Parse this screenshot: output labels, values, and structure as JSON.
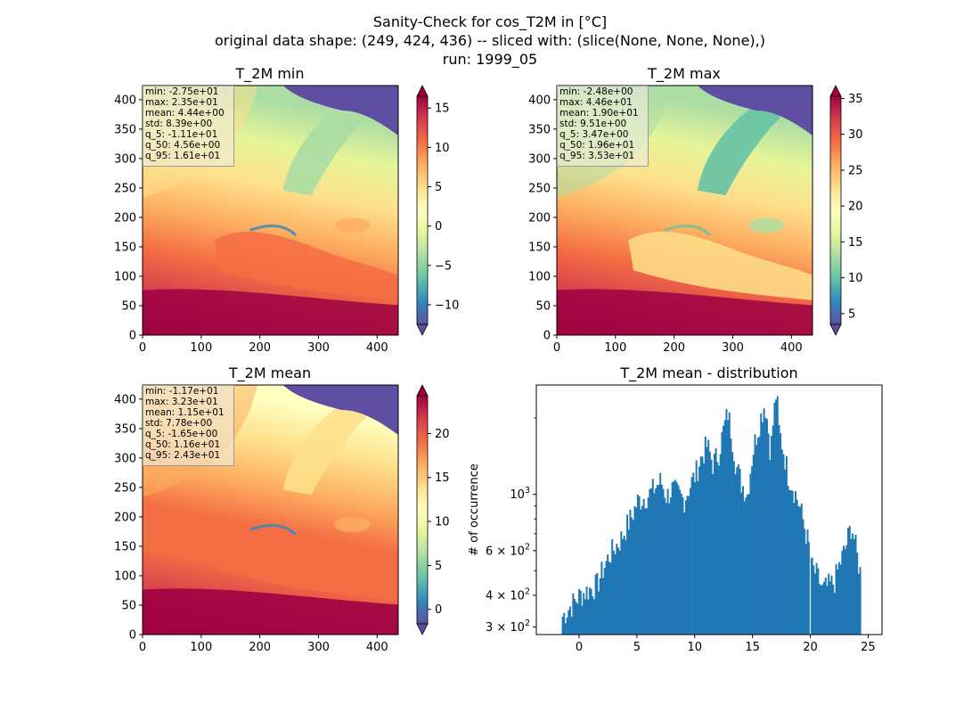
{
  "figure": {
    "title_lines": [
      "Sanity-Check for cos_T2M in [°C]",
      "original data shape: (249, 424, 436) -- sliced with: (slice(None, None, None),)",
      "run: 1999_05"
    ]
  },
  "colormap": {
    "name": "Spectral_r",
    "stops": [
      "#5e4fa2",
      "#3288bd",
      "#66c2a5",
      "#abdda4",
      "#e6f598",
      "#ffffbf",
      "#fee08b",
      "#fdae61",
      "#f46d43",
      "#d53e4f",
      "#9e0142"
    ]
  },
  "chart_data": [
    {
      "type": "heatmap",
      "title": "T_2M min",
      "xlim": [
        0,
        436
      ],
      "ylim": [
        0,
        424
      ],
      "xticks": [
        "0",
        "100",
        "200",
        "300",
        "400"
      ],
      "yticks": [
        "0",
        "50",
        "100",
        "150",
        "200",
        "250",
        "300",
        "350",
        "400"
      ],
      "stats": [
        "min: -2.75e+01",
        "max: 2.35e+01",
        "mean: 4.44e+00",
        "std: 8.39e+00",
        "q_5: -1.11e+01",
        "q_50: 4.56e+00",
        "q_95: 1.61e+01"
      ],
      "colorbar": {
        "range": [
          -12.5,
          16.5
        ],
        "ticks": [
          "−10",
          "−5",
          "0",
          "5",
          "10",
          "15"
        ],
        "tick_values": [
          -10,
          -5,
          0,
          5,
          10,
          15
        ]
      }
    },
    {
      "type": "heatmap",
      "title": "T_2M max",
      "xlim": [
        0,
        436
      ],
      "ylim": [
        0,
        424
      ],
      "xticks": [
        "0",
        "100",
        "200",
        "300",
        "400"
      ],
      "yticks": [
        "0",
        "50",
        "100",
        "150",
        "200",
        "250",
        "300",
        "350",
        "400"
      ],
      "stats": [
        "min: -2.48e+00",
        "max: 4.46e+01",
        "mean: 1.90e+01",
        "std: 9.51e+00",
        "q_5: 3.47e+00",
        "q_50: 1.96e+01",
        "q_95: 3.53e+01"
      ],
      "colorbar": {
        "range": [
          3.5,
          35.3
        ],
        "ticks": [
          "5",
          "10",
          "15",
          "20",
          "25",
          "30",
          "35"
        ],
        "tick_values": [
          5,
          10,
          15,
          20,
          25,
          30,
          35
        ]
      }
    },
    {
      "type": "heatmap",
      "title": "T_2M mean",
      "xlim": [
        0,
        436
      ],
      "ylim": [
        0,
        424
      ],
      "xticks": [
        "0",
        "100",
        "200",
        "300",
        "400"
      ],
      "yticks": [
        "0",
        "50",
        "100",
        "150",
        "200",
        "250",
        "300",
        "350",
        "400"
      ],
      "stats": [
        "min: -1.17e+01",
        "max: 3.23e+01",
        "mean: 1.15e+01",
        "std: 7.78e+00",
        "q_5: -1.65e+00",
        "q_50: 1.16e+01",
        "q_95: 2.43e+01"
      ],
      "colorbar": {
        "range": [
          -1.65,
          24.3
        ],
        "ticks": [
          "0",
          "5",
          "10",
          "15",
          "20"
        ],
        "tick_values": [
          0,
          5,
          10,
          15,
          20
        ]
      }
    },
    {
      "type": "bar",
      "title": "T_2M mean - distribution",
      "ylabel": "# of occurrence",
      "xlim": [
        -3.7,
        26.2
      ],
      "ylim": [
        280,
        2700
      ],
      "y_scale": "log",
      "xticks": [
        "0",
        "5",
        "10",
        "15",
        "20",
        "25"
      ],
      "xtick_values": [
        0,
        5,
        10,
        15,
        20,
        25
      ],
      "ytick_labels": [
        "3 × 10^2",
        "4 × 10^2",
        "6 × 10^2",
        "10^3"
      ],
      "ytick_values": [
        300,
        400,
        600,
        1000
      ],
      "ytick_minor": [
        500,
        700,
        800,
        900,
        2000
      ],
      "bar_color": "#1f77b4",
      "x": [
        -1.5,
        0,
        1.5,
        2.5,
        3.5,
        4.5,
        5.0,
        6.0,
        7.0,
        7.5,
        8.0,
        9.0,
        10.0,
        10.5,
        11.0,
        11.5,
        12.0,
        12.8,
        13.5,
        14.0,
        14.5,
        15.0,
        16.0,
        16.5,
        17.0,
        17.2,
        18.0,
        19.0,
        19.5,
        19.9,
        20.0,
        20.5,
        21.0,
        22.0,
        23.0,
        23.5,
        24.0,
        24.3
      ],
      "values": [
        330,
        400,
        440,
        570,
        660,
        820,
        940,
        1000,
        1130,
        980,
        1050,
        950,
        1200,
        1400,
        1560,
        1320,
        1450,
        2100,
        1300,
        1100,
        1000,
        1500,
        2300,
        1450,
        2550,
        1800,
        1200,
        900,
        720,
        600,
        520,
        480,
        420,
        450,
        620,
        760,
        560,
        480
      ]
    }
  ]
}
